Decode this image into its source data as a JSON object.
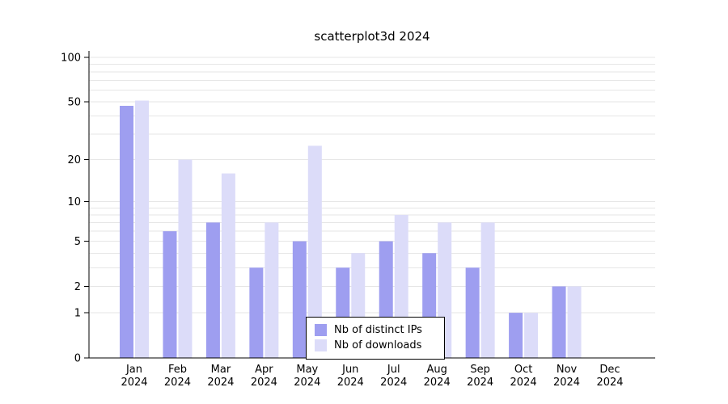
{
  "title": "scatterplot3d 2024",
  "chart_data": {
    "type": "bar",
    "title": "scatterplot3d 2024",
    "categories": [
      "Jan",
      "Feb",
      "Mar",
      "Apr",
      "May",
      "Jun",
      "Jul",
      "Aug",
      "Sep",
      "Oct",
      "Nov",
      "Dec"
    ],
    "year_label": "2024",
    "series": [
      {
        "name": "Nb of distinct IPs",
        "color": "#9e9ef0",
        "values": [
          47,
          6,
          7,
          3,
          5,
          3,
          5,
          4,
          3,
          1,
          2,
          0
        ]
      },
      {
        "name": "Nb of downloads",
        "color": "#dcdcf9",
        "values": [
          51,
          20,
          16,
          7,
          25,
          4,
          8,
          7,
          7,
          1,
          2,
          0
        ]
      }
    ],
    "y_ticks": [
      0,
      1,
      2,
      5,
      10,
      20,
      50,
      100
    ],
    "gridlines": [
      1,
      2,
      3,
      4,
      5,
      6,
      7,
      8,
      9,
      10,
      20,
      30,
      40,
      50,
      60,
      70,
      80,
      90,
      100
    ],
    "ylim": [
      0,
      100
    ],
    "scale": "log1p",
    "grid": true,
    "legend_position": "bottom-center"
  },
  "colors": {
    "grid": "#e6e6e6",
    "axis": "#000000",
    "background": "#ffffff"
  }
}
